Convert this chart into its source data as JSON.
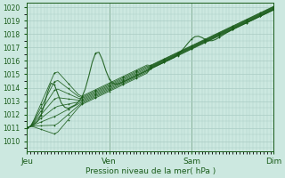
{
  "xlabel": "Pression niveau de la mer( hPa )",
  "day_labels": [
    "Jeu",
    "Ven",
    "Sam",
    "Dim"
  ],
  "ylim": [
    1009.3,
    1020.3
  ],
  "yticks": [
    1010,
    1011,
    1012,
    1013,
    1014,
    1015,
    1016,
    1017,
    1018,
    1019,
    1020
  ],
  "bg_color": "#cce8e0",
  "grid_color": "#aaccc4",
  "line_color": "#1a5c1a",
  "num_lines": 9
}
